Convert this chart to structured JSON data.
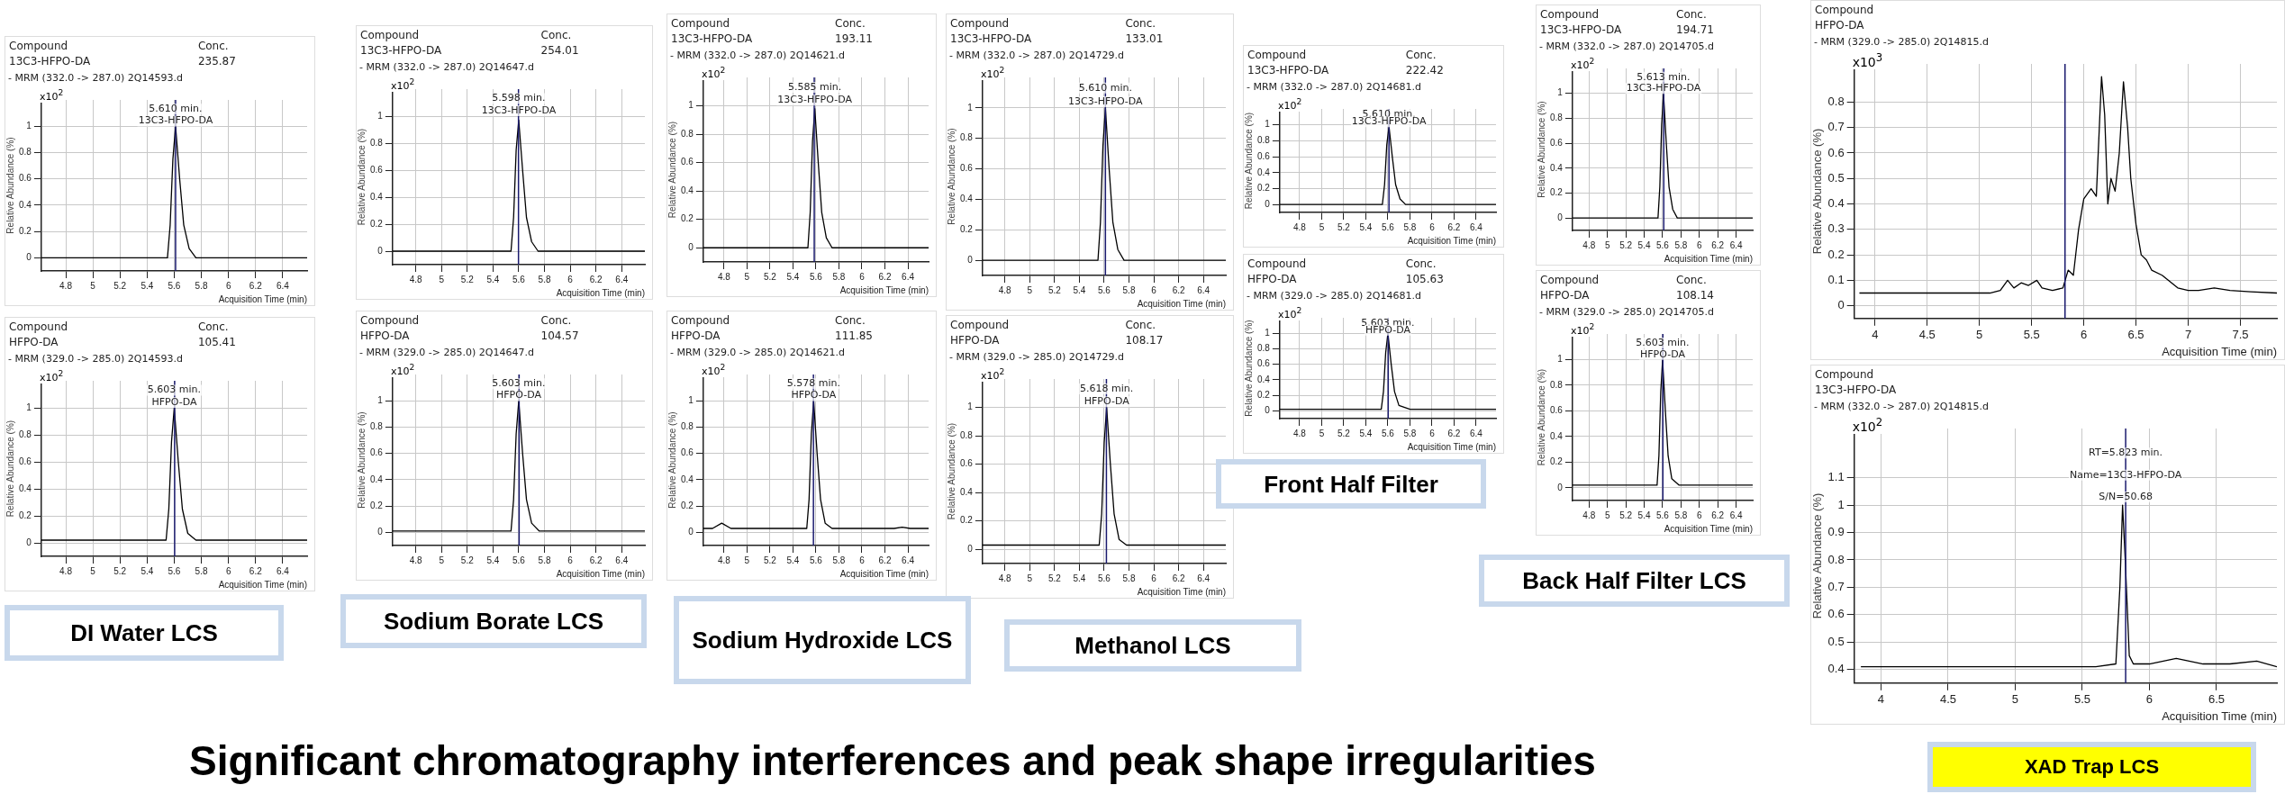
{
  "chart_data": [
    {
      "type": "line",
      "xlabel": "Acquisition Time (min)",
      "ylabel": "Relative Abundance (%)",
      "annotations": [
        "Compound",
        "13C3-HFPO-DA",
        "Conc.",
        "235.87",
        "- MRM (332.0 -> 287.0) 2Q14593.d",
        "x10$^{2}$",
        {
          "text": "5.610 min.",
          "x": 5.61,
          "y": 1.13
        },
        {
          "text": "13C3-HFPO-DA",
          "x": 5.61,
          "y": 1.04
        }
      ],
      "series": [
        {
          "color": "#000000",
          "x": [
            4.62,
            5.55,
            5.57,
            5.59,
            5.61,
            5.64,
            5.67,
            5.71,
            5.76,
            6.58
          ],
          "values": [
            0,
            0,
            0.25,
            0.75,
            1.0,
            0.6,
            0.25,
            0.07,
            0,
            0
          ]
        }
      ],
      "ref_lines": [
        {
          "axis": "x",
          "value": 5.61,
          "color": "#1a1a6e"
        }
      ],
      "xlim": [
        4.62,
        6.58
      ],
      "xticks": [
        4.8,
        5,
        5.2,
        5.4,
        5.6,
        5.8,
        6,
        6.2,
        6.4
      ],
      "ylim": [
        -0.1,
        1.2
      ],
      "yticks": [
        0,
        0.2,
        0.4,
        0.6,
        0.8,
        1
      ],
      "grid": true
    },
    {
      "type": "line",
      "xlabel": "Acquisition Time (min)",
      "ylabel": "Relative Abundance (%)",
      "annotations": [
        "Compound",
        "HFPO-DA",
        "Conc.",
        "105.41",
        "- MRM (329.0 -> 285.0) 2Q14593.d",
        "x10$^{2}$",
        {
          "text": "5.603 min.",
          "x": 5.6,
          "y": 1.13
        },
        {
          "text": "HFPO-DA",
          "x": 5.6,
          "y": 1.04
        }
      ],
      "series": [
        {
          "color": "#000000",
          "x": [
            4.62,
            5.54,
            5.56,
            5.58,
            5.6,
            5.63,
            5.66,
            5.7,
            5.76,
            6.58
          ],
          "values": [
            0.02,
            0.02,
            0.25,
            0.75,
            1.0,
            0.6,
            0.25,
            0.07,
            0.02,
            0.02
          ]
        }
      ],
      "ref_lines": [
        {
          "axis": "x",
          "value": 5.603,
          "color": "#1a1a6e"
        }
      ],
      "xlim": [
        4.62,
        6.58
      ],
      "xticks": [
        4.8,
        5,
        5.2,
        5.4,
        5.6,
        5.8,
        6,
        6.2,
        6.4
      ],
      "ylim": [
        -0.1,
        1.2
      ],
      "yticks": [
        0,
        0.2,
        0.4,
        0.6,
        0.8,
        1
      ],
      "grid": true
    },
    {
      "type": "line",
      "xlabel": "Acquisition Time (min)",
      "ylabel": "Relative Abundance (%)",
      "annotations": [
        "Compound",
        "13C3-HFPO-DA",
        "Conc.",
        "254.01",
        "- MRM (332.0 -> 287.0) 2Q14647.d",
        "x10$^{2}$",
        {
          "text": "5.598 min.",
          "x": 5.6,
          "y": 1.13
        },
        {
          "text": "13C3-HFPO-DA",
          "x": 5.6,
          "y": 1.04
        }
      ],
      "series": [
        {
          "color": "#000000",
          "x": [
            4.62,
            5.54,
            5.56,
            5.58,
            5.6,
            5.63,
            5.66,
            5.7,
            5.75,
            6.58
          ],
          "values": [
            0,
            0,
            0.25,
            0.75,
            0.97,
            0.6,
            0.25,
            0.07,
            0,
            0
          ]
        }
      ],
      "ref_lines": [
        {
          "axis": "x",
          "value": 5.598,
          "color": "#1a1a6e"
        }
      ],
      "xlim": [
        4.62,
        6.58
      ],
      "xticks": [
        4.8,
        5,
        5.2,
        5.4,
        5.6,
        5.8,
        6,
        6.2,
        6.4
      ],
      "ylim": [
        -0.1,
        1.2
      ],
      "yticks": [
        0,
        0.2,
        0.4,
        0.6,
        0.8,
        1
      ],
      "grid": true
    },
    {
      "type": "line",
      "xlabel": "Acquisition Time (min)",
      "ylabel": "Relative Abundance (%)",
      "annotations": [
        "Compound",
        "HFPO-DA",
        "Conc.",
        "104.57",
        "- MRM (329.0 -> 285.0) 2Q14647.d",
        "x10$^{2}$",
        {
          "text": "5.603 min.",
          "x": 5.6,
          "y": 1.13
        },
        {
          "text": "HFPO-DA",
          "x": 5.6,
          "y": 1.04
        }
      ],
      "series": [
        {
          "color": "#000000",
          "x": [
            4.62,
            5.54,
            5.56,
            5.58,
            5.6,
            5.63,
            5.66,
            5.7,
            5.76,
            6.58
          ],
          "values": [
            0.01,
            0.01,
            0.25,
            0.75,
            1.0,
            0.6,
            0.25,
            0.07,
            0.01,
            0.01
          ]
        }
      ],
      "ref_lines": [
        {
          "axis": "x",
          "value": 5.603,
          "color": "#1a1a6e"
        }
      ],
      "xlim": [
        4.62,
        6.58
      ],
      "xticks": [
        4.8,
        5,
        5.2,
        5.4,
        5.6,
        5.8,
        6,
        6.2,
        6.4
      ],
      "ylim": [
        -0.1,
        1.2
      ],
      "yticks": [
        0,
        0.2,
        0.4,
        0.6,
        0.8,
        1
      ],
      "grid": true
    },
    {
      "type": "line",
      "xlabel": "Acquisition Time (min)",
      "ylabel": "Relative Abundance (%)",
      "annotations": [
        "Compound",
        "13C3-HFPO-DA",
        "Conc.",
        "193.11",
        "- MRM (332.0 -> 287.0) 2Q14621.d",
        "x10$^{2}$",
        {
          "text": "5.585 min.",
          "x": 5.59,
          "y": 1.13
        },
        {
          "text": "13C3-HFPO-DA",
          "x": 5.59,
          "y": 1.04
        }
      ],
      "series": [
        {
          "color": "#000000",
          "x": [
            4.62,
            5.53,
            5.55,
            5.57,
            5.59,
            5.62,
            5.65,
            5.69,
            5.74,
            6.58
          ],
          "values": [
            0,
            0,
            0.25,
            0.75,
            0.98,
            0.6,
            0.25,
            0.07,
            0,
            0
          ]
        }
      ],
      "ref_lines": [
        {
          "axis": "x",
          "value": 5.585,
          "color": "#1a1a6e"
        }
      ],
      "xlim": [
        4.62,
        6.58
      ],
      "xticks": [
        4.8,
        5,
        5.2,
        5.4,
        5.6,
        5.8,
        6,
        6.2,
        6.4
      ],
      "ylim": [
        -0.1,
        1.2
      ],
      "yticks": [
        0,
        0.2,
        0.4,
        0.6,
        0.8,
        1
      ],
      "grid": true
    },
    {
      "type": "line",
      "xlabel": "Acquisition Time (min)",
      "ylabel": "Relative Abundance (%)",
      "annotations": [
        "Compound",
        "HFPO-DA",
        "Conc.",
        "111.85",
        "- MRM (329.0 -> 285.0) 2Q14621.d",
        "x10$^{2}$",
        {
          "text": "5.578 min.",
          "x": 5.58,
          "y": 1.13
        },
        {
          "text": "HFPO-DA",
          "x": 5.58,
          "y": 1.04
        }
      ],
      "series": [
        {
          "color": "#000000",
          "x": [
            4.62,
            4.7,
            4.78,
            4.86,
            5.52,
            5.54,
            5.56,
            5.58,
            5.61,
            5.64,
            5.68,
            5.74,
            6.28,
            6.35,
            6.42,
            6.58
          ],
          "values": [
            0.03,
            0.03,
            0.07,
            0.03,
            0.03,
            0.25,
            0.75,
            1.0,
            0.6,
            0.25,
            0.07,
            0.03,
            0.03,
            0.04,
            0.03,
            0.03
          ]
        }
      ],
      "ref_lines": [
        {
          "axis": "x",
          "value": 5.578,
          "color": "#1a1a6e"
        }
      ],
      "xlim": [
        4.62,
        6.58
      ],
      "xticks": [
        4.8,
        5,
        5.2,
        5.4,
        5.6,
        5.8,
        6,
        6.2,
        6.4
      ],
      "ylim": [
        -0.1,
        1.2
      ],
      "yticks": [
        0,
        0.2,
        0.4,
        0.6,
        0.8,
        1
      ],
      "grid": true
    },
    {
      "type": "line",
      "xlabel": "Acquisition Time (min)",
      "ylabel": "Relative Abundance (%)",
      "annotations": [
        "Compound",
        "13C3-HFPO-DA",
        "Conc.",
        "133.01",
        "- MRM (332.0 -> 287.0) 2Q14729.d",
        "x10$^{2}$",
        {
          "text": "5.610 min.",
          "x": 5.61,
          "y": 1.13
        },
        {
          "text": "13C3-HFPO-DA",
          "x": 5.61,
          "y": 1.04
        }
      ],
      "series": [
        {
          "color": "#000000",
          "x": [
            4.62,
            5.55,
            5.57,
            5.59,
            5.61,
            5.64,
            5.67,
            5.71,
            5.76,
            6.58
          ],
          "values": [
            0,
            0,
            0.25,
            0.75,
            1.0,
            0.6,
            0.25,
            0.07,
            0,
            0
          ]
        }
      ],
      "ref_lines": [
        {
          "axis": "x",
          "value": 5.61,
          "color": "#1a1a6e"
        }
      ],
      "xlim": [
        4.62,
        6.58
      ],
      "xticks": [
        4.8,
        5,
        5.2,
        5.4,
        5.6,
        5.8,
        6,
        6.2,
        6.4
      ],
      "ylim": [
        -0.1,
        1.2
      ],
      "yticks": [
        0,
        0.2,
        0.4,
        0.6,
        0.8,
        1
      ],
      "grid": true
    },
    {
      "type": "line",
      "xlabel": "Acquisition Time (min)",
      "ylabel": "Relative Abundance (%)",
      "annotations": [
        "Compound",
        "HFPO-DA",
        "Conc.",
        "108.17",
        "- MRM (329.0 -> 285.0) 2Q14729.d",
        "x10$^{2}$",
        {
          "text": "5.618 min.",
          "x": 5.62,
          "y": 1.13
        },
        {
          "text": "HFPO-DA",
          "x": 5.62,
          "y": 1.04
        }
      ],
      "series": [
        {
          "color": "#000000",
          "x": [
            4.62,
            5.56,
            5.58,
            5.6,
            5.62,
            5.65,
            5.68,
            5.72,
            5.78,
            6.58
          ],
          "values": [
            0.03,
            0.03,
            0.25,
            0.75,
            1.0,
            0.6,
            0.25,
            0.07,
            0.03,
            0.03
          ]
        }
      ],
      "ref_lines": [
        {
          "axis": "x",
          "value": 5.618,
          "color": "#1a1a6e"
        }
      ],
      "xlim": [
        4.62,
        6.58
      ],
      "xticks": [
        4.8,
        5,
        5.2,
        5.4,
        5.6,
        5.8,
        6,
        6.2,
        6.4
      ],
      "ylim": [
        -0.1,
        1.2
      ],
      "yticks": [
        0,
        0.2,
        0.4,
        0.6,
        0.8,
        1
      ],
      "grid": true
    },
    {
      "type": "line",
      "xlabel": "Acquisition Time (min)",
      "ylabel": "Relative Abundance (%)",
      "annotations": [
        "Compound",
        "13C3-HFPO-DA",
        "Conc.",
        "222.42",
        "- MRM (332.0 -> 287.0) 2Q14681.d",
        "x10$^{2}$",
        {
          "text": "5.610 min.",
          "x": 5.61,
          "y": 1.13
        },
        {
          "text": "13C3-HFPO-DA",
          "x": 5.61,
          "y": 1.04
        }
      ],
      "series": [
        {
          "color": "#000000",
          "x": [
            4.62,
            5.55,
            5.57,
            5.59,
            5.61,
            5.64,
            5.67,
            5.71,
            5.76,
            6.58
          ],
          "values": [
            0,
            0,
            0.25,
            0.75,
            0.98,
            0.6,
            0.25,
            0.07,
            0,
            0
          ]
        }
      ],
      "ref_lines": [
        {
          "axis": "x",
          "value": 5.61,
          "color": "#1a1a6e"
        }
      ],
      "xlim": [
        4.62,
        6.58
      ],
      "xticks": [
        4.8,
        5,
        5.2,
        5.4,
        5.6,
        5.8,
        6,
        6.2,
        6.4
      ],
      "ylim": [
        -0.1,
        1.2
      ],
      "yticks": [
        0,
        0.2,
        0.4,
        0.6,
        0.8,
        1
      ],
      "grid": true
    },
    {
      "type": "line",
      "xlabel": "Acquisition Time (min)",
      "ylabel": "Relative Abundance (%)",
      "annotations": [
        "Compound",
        "HFPO-DA",
        "Conc.",
        "105.63",
        "- MRM (329.0 -> 285.0) 2Q14681.d",
        "x10$^{2}$",
        {
          "text": "5.603 min.",
          "x": 5.6,
          "y": 1.13
        },
        {
          "text": "HFPO-DA",
          "x": 5.6,
          "y": 1.04
        }
      ],
      "series": [
        {
          "color": "#000000",
          "x": [
            4.62,
            5.54,
            5.56,
            5.58,
            5.6,
            5.63,
            5.66,
            5.7,
            5.8,
            6.58
          ],
          "values": [
            0.02,
            0.02,
            0.25,
            0.75,
            1.0,
            0.6,
            0.25,
            0.07,
            0.02,
            0.02
          ]
        }
      ],
      "ref_lines": [
        {
          "axis": "x",
          "value": 5.603,
          "color": "#1a1a6e"
        }
      ],
      "xlim": [
        4.62,
        6.58
      ],
      "xticks": [
        4.8,
        5,
        5.2,
        5.4,
        5.6,
        5.8,
        6,
        6.2,
        6.4
      ],
      "ylim": [
        -0.1,
        1.2
      ],
      "yticks": [
        0,
        0.2,
        0.4,
        0.6,
        0.8,
        1
      ],
      "grid": true
    },
    {
      "type": "line",
      "xlabel": "Acquisition Time (min)",
      "ylabel": "Relative Abundance (%)",
      "annotations": [
        "Compound",
        "13C3-HFPO-DA",
        "Conc.",
        "194.71",
        "- MRM (332.0 -> 287.0) 2Q14705.d",
        "x10$^{2}$",
        {
          "text": "5.613 min.",
          "x": 5.61,
          "y": 1.13
        },
        {
          "text": "13C3-HFPO-DA",
          "x": 5.61,
          "y": 1.04
        }
      ],
      "series": [
        {
          "color": "#000000",
          "x": [
            4.62,
            5.55,
            5.57,
            5.59,
            5.61,
            5.64,
            5.67,
            5.71,
            5.76,
            6.58
          ],
          "values": [
            0,
            0,
            0.25,
            0.75,
            1.0,
            0.6,
            0.25,
            0.07,
            0,
            0
          ]
        }
      ],
      "ref_lines": [
        {
          "axis": "x",
          "value": 5.613,
          "color": "#1a1a6e"
        }
      ],
      "xlim": [
        4.62,
        6.58
      ],
      "xticks": [
        4.8,
        5,
        5.2,
        5.4,
        5.6,
        5.8,
        6,
        6.2,
        6.4
      ],
      "ylim": [
        -0.1,
        1.2
      ],
      "yticks": [
        0,
        0.2,
        0.4,
        0.6,
        0.8,
        1
      ],
      "grid": true
    },
    {
      "type": "line",
      "xlabel": "Acquisition Time (min)",
      "ylabel": "Relative Abundance (%)",
      "annotations": [
        "Compound",
        "HFPO-DA",
        "Conc.",
        "108.14",
        "- MRM (329.0 -> 285.0) 2Q14705.d",
        "x10$^{2}$",
        {
          "text": "5.603 min.",
          "x": 5.6,
          "y": 1.13
        },
        {
          "text": "HFPO-DA",
          "x": 5.6,
          "y": 1.04
        }
      ],
      "series": [
        {
          "color": "#000000",
          "x": [
            4.62,
            5.54,
            5.56,
            5.58,
            5.6,
            5.63,
            5.66,
            5.7,
            5.78,
            6.58
          ],
          "values": [
            0.02,
            0.02,
            0.25,
            0.75,
            1.0,
            0.6,
            0.25,
            0.07,
            0.02,
            0.02
          ]
        }
      ],
      "ref_lines": [
        {
          "axis": "x",
          "value": 5.603,
          "color": "#1a1a6e"
        }
      ],
      "xlim": [
        4.62,
        6.58
      ],
      "xticks": [
        4.8,
        5,
        5.2,
        5.4,
        5.6,
        5.8,
        6,
        6.2,
        6.4
      ],
      "ylim": [
        -0.1,
        1.2
      ],
      "yticks": [
        0,
        0.2,
        0.4,
        0.6,
        0.8,
        1
      ],
      "grid": true
    },
    {
      "type": "line",
      "xlabel": "Acquisition Time (min)",
      "ylabel": "Relative Abundance (%)",
      "annotations": [
        "Compound",
        "HFPO-DA",
        "- MRM (329.0 -> 285.0) 2Q14815.d",
        "x10$^{3}$"
      ],
      "series": [
        {
          "color": "#000000",
          "x": [
            3.85,
            4.5,
            5.1,
            5.2,
            5.27,
            5.33,
            5.4,
            5.47,
            5.55,
            5.6,
            5.7,
            5.8,
            5.85,
            5.9,
            5.95,
            6.0,
            6.07,
            6.12,
            6.17,
            6.2,
            6.23,
            6.26,
            6.3,
            6.34,
            6.38,
            6.42,
            6.45,
            6.5,
            6.55,
            6.6,
            6.65,
            6.75,
            6.9,
            7.0,
            7.1,
            7.25,
            7.4,
            7.6,
            7.85
          ],
          "values": [
            0.05,
            0.05,
            0.05,
            0.06,
            0.1,
            0.07,
            0.09,
            0.08,
            0.1,
            0.07,
            0.06,
            0.07,
            0.14,
            0.12,
            0.3,
            0.42,
            0.46,
            0.43,
            0.9,
            0.75,
            0.4,
            0.5,
            0.45,
            0.6,
            0.88,
            0.7,
            0.5,
            0.32,
            0.2,
            0.18,
            0.14,
            0.12,
            0.07,
            0.06,
            0.06,
            0.07,
            0.06,
            0.055,
            0.05
          ]
        }
      ],
      "ref_lines": [
        {
          "axis": "x",
          "value": 5.82,
          "color": "#1a1a6e"
        }
      ],
      "xlim": [
        3.8,
        7.85
      ],
      "xticks": [
        4,
        4.5,
        5,
        5.5,
        6,
        6.5,
        7,
        7.5
      ],
      "ylim": [
        -0.05,
        0.95
      ],
      "yticks": [
        0,
        0.1,
        0.2,
        0.3,
        0.4,
        0.5,
        0.6,
        0.7,
        0.8
      ],
      "grid": true
    },
    {
      "type": "line",
      "xlabel": "Acquisition Time (min)",
      "ylabel": "Relative Abundance (%)",
      "annotations": [
        "Compound",
        "13C3-HFPO-DA",
        "- MRM (332.0 -> 287.0) 2Q14815.d",
        "x10$^{2}$",
        {
          "text": "RT=5.823 min.",
          "x": 5.823,
          "y": 1.19
        },
        {
          "text": "Name=13C3-HFPO-DA",
          "x": 5.823,
          "y": 1.11
        },
        {
          "text": "S/N=50.68",
          "x": 5.823,
          "y": 1.03
        }
      ],
      "series": [
        {
          "color": "#000000",
          "x": [
            3.85,
            4.5,
            5.0,
            5.3,
            5.6,
            5.75,
            5.78,
            5.8,
            5.82,
            5.85,
            5.88,
            6.0,
            6.2,
            6.4,
            6.6,
            6.8,
            6.95
          ],
          "values": [
            0.41,
            0.41,
            0.41,
            0.41,
            0.41,
            0.42,
            0.7,
            1.0,
            0.8,
            0.45,
            0.42,
            0.42,
            0.44,
            0.42,
            0.42,
            0.43,
            0.41
          ]
        }
      ],
      "ref_lines": [
        {
          "axis": "x",
          "value": 5.823,
          "color": "#1a1a6e"
        }
      ],
      "xlim": [
        3.8,
        6.95
      ],
      "xticks": [
        4,
        4.5,
        5,
        5.5,
        6,
        6.5
      ],
      "ylim": [
        0.35,
        1.28
      ],
      "yticks": [
        0.4,
        0.5,
        0.6,
        0.7,
        0.8,
        0.9,
        1,
        1.1
      ],
      "grid": true
    },
    {
      "type": "other",
      "annotations": [
        "DI Water LCS",
        "Sodium Borate LCS",
        "Sodium Hydroxide LCS",
        "Methanol LCS",
        "Front Half Filter",
        "Back Half Filter LCS",
        "XAD Trap LCS",
        "Significant chromatography interferences and peak shape irregularities"
      ]
    }
  ]
}
